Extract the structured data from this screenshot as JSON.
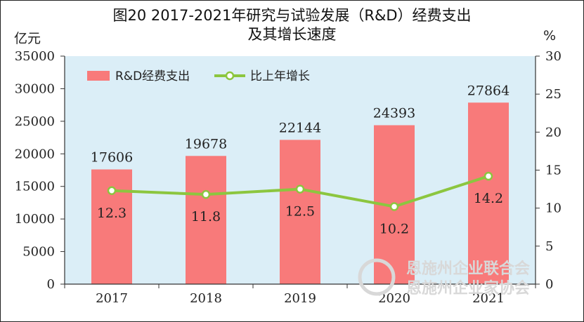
{
  "title_line1": "图20   2017-2021年研究与试验发展（R&D）经费支出",
  "title_line2": "及其增长速度",
  "unit_left": "亿元",
  "unit_right": "%",
  "watermark_line1": "恩施州企业联合会",
  "watermark_line2": "恩施州企业家协会",
  "colors": {
    "bar": "#f87a7a",
    "line": "#8cc63f",
    "plot_bg": "#dbeef7"
  },
  "chart_data": {
    "type": "bar",
    "categories": [
      "2017",
      "2018",
      "2019",
      "2020",
      "2021"
    ],
    "series": [
      {
        "name": "R&D经费支出",
        "type": "bar",
        "axis": "left",
        "values": [
          17606,
          19678,
          22144,
          24393,
          27864
        ]
      },
      {
        "name": "比上年增长",
        "type": "line",
        "axis": "right",
        "values": [
          12.3,
          11.8,
          12.5,
          10.2,
          14.2
        ]
      }
    ],
    "ylim_left": [
      0,
      35000
    ],
    "yticks_left": [
      0,
      5000,
      10000,
      15000,
      20000,
      25000,
      30000,
      35000
    ],
    "ylim_right": [
      0,
      30
    ],
    "yticks_right": [
      0,
      5,
      10,
      15,
      20,
      25,
      30
    ],
    "legend": "top-left",
    "grid": false
  }
}
